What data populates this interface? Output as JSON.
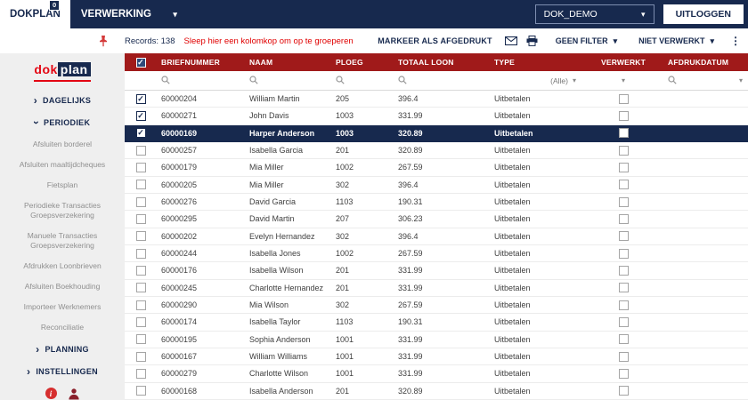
{
  "topbar": {
    "brand": "DOKPLAN",
    "badge": "0",
    "module": "VERWERKING",
    "environment": "DOK_DEMO",
    "logout_label": "UITLOGGEN"
  },
  "toolbar": {
    "records_label": "Records: 138",
    "group_hint": "Sleep hier een kolomkop om op te groeperen",
    "mark_printed_label": "MARKEER ALS AFGEDRUKT",
    "filter_label": "GEEN FILTER",
    "processed_label": "NIET VERWERKT"
  },
  "sidebar": {
    "logo_part1": "dok",
    "logo_part2": "plan",
    "section_dagelijks": "DAGELIJKS",
    "section_periodiek": "PERIODIEK",
    "section_planning": "PLANNING",
    "section_instellingen": "INSTELLINGEN",
    "periodiek_items": [
      "Afsluiten borderel",
      "Afsluiten maaltijdcheques",
      "Fietsplan",
      "Periodieke Transacties Groepsverzekering",
      "Manuele Transacties Groepsverzekering",
      "Afdrukken Loonbrieven",
      "Afsluiten Boekhouding",
      "Importeer Werknemers",
      "Reconciliatie"
    ],
    "info_icon_glyph": "i"
  },
  "grid": {
    "columns": {
      "briefnummer": "BRIEFNUMMER",
      "naam": "NAAM",
      "ploeg": "PLOEG",
      "totaal_loon": "TOTAAL LOON",
      "type": "TYPE",
      "verwerkt": "VERWERKT",
      "afdrukdatum": "AFDRUKDATUM"
    },
    "type_filter_value": "(Alle)",
    "rows": [
      {
        "selected": true,
        "highlighted": false,
        "briefnummer": "60000204",
        "naam": "William Martin",
        "ploeg": "205",
        "totaal_loon": "396.4",
        "type": "Uitbetalen",
        "verwerkt": false,
        "afdrukdatum": ""
      },
      {
        "selected": true,
        "highlighted": false,
        "briefnummer": "60000271",
        "naam": "John Davis",
        "ploeg": "1003",
        "totaal_loon": "331.99",
        "type": "Uitbetalen",
        "verwerkt": false,
        "afdrukdatum": ""
      },
      {
        "selected": true,
        "highlighted": true,
        "briefnummer": "60000169",
        "naam": "Harper Anderson",
        "ploeg": "1003",
        "totaal_loon": "320.89",
        "type": "Uitbetalen",
        "verwerkt": false,
        "afdrukdatum": ""
      },
      {
        "selected": false,
        "highlighted": false,
        "briefnummer": "60000257",
        "naam": "Isabella Garcia",
        "ploeg": "201",
        "totaal_loon": "320.89",
        "type": "Uitbetalen",
        "verwerkt": false,
        "afdrukdatum": ""
      },
      {
        "selected": false,
        "highlighted": false,
        "briefnummer": "60000179",
        "naam": "Mia Miller",
        "ploeg": "1002",
        "totaal_loon": "267.59",
        "type": "Uitbetalen",
        "verwerkt": false,
        "afdrukdatum": ""
      },
      {
        "selected": false,
        "highlighted": false,
        "briefnummer": "60000205",
        "naam": "Mia Miller",
        "ploeg": "302",
        "totaal_loon": "396.4",
        "type": "Uitbetalen",
        "verwerkt": false,
        "afdrukdatum": ""
      },
      {
        "selected": false,
        "highlighted": false,
        "briefnummer": "60000276",
        "naam": "David Garcia",
        "ploeg": "1103",
        "totaal_loon": "190.31",
        "type": "Uitbetalen",
        "verwerkt": false,
        "afdrukdatum": ""
      },
      {
        "selected": false,
        "highlighted": false,
        "briefnummer": "60000295",
        "naam": "David Martin",
        "ploeg": "207",
        "totaal_loon": "306.23",
        "type": "Uitbetalen",
        "verwerkt": false,
        "afdrukdatum": ""
      },
      {
        "selected": false,
        "highlighted": false,
        "briefnummer": "60000202",
        "naam": "Evelyn Hernandez",
        "ploeg": "302",
        "totaal_loon": "396.4",
        "type": "Uitbetalen",
        "verwerkt": false,
        "afdrukdatum": ""
      },
      {
        "selected": false,
        "highlighted": false,
        "briefnummer": "60000244",
        "naam": "Isabella Jones",
        "ploeg": "1002",
        "totaal_loon": "267.59",
        "type": "Uitbetalen",
        "verwerkt": false,
        "afdrukdatum": ""
      },
      {
        "selected": false,
        "highlighted": false,
        "briefnummer": "60000176",
        "naam": "Isabella Wilson",
        "ploeg": "201",
        "totaal_loon": "331.99",
        "type": "Uitbetalen",
        "verwerkt": false,
        "afdrukdatum": ""
      },
      {
        "selected": false,
        "highlighted": false,
        "briefnummer": "60000245",
        "naam": "Charlotte Hernandez",
        "ploeg": "201",
        "totaal_loon": "331.99",
        "type": "Uitbetalen",
        "verwerkt": false,
        "afdrukdatum": ""
      },
      {
        "selected": false,
        "highlighted": false,
        "briefnummer": "60000290",
        "naam": "Mia Wilson",
        "ploeg": "302",
        "totaal_loon": "267.59",
        "type": "Uitbetalen",
        "verwerkt": false,
        "afdrukdatum": ""
      },
      {
        "selected": false,
        "highlighted": false,
        "briefnummer": "60000174",
        "naam": "Isabella Taylor",
        "ploeg": "1103",
        "totaal_loon": "190.31",
        "type": "Uitbetalen",
        "verwerkt": false,
        "afdrukdatum": ""
      },
      {
        "selected": false,
        "highlighted": false,
        "briefnummer": "60000195",
        "naam": "Sophia Anderson",
        "ploeg": "1001",
        "totaal_loon": "331.99",
        "type": "Uitbetalen",
        "verwerkt": false,
        "afdrukdatum": ""
      },
      {
        "selected": false,
        "highlighted": false,
        "briefnummer": "60000167",
        "naam": "William Williams",
        "ploeg": "1001",
        "totaal_loon": "331.99",
        "type": "Uitbetalen",
        "verwerkt": false,
        "afdrukdatum": ""
      },
      {
        "selected": false,
        "highlighted": false,
        "briefnummer": "60000279",
        "naam": "Charlotte Wilson",
        "ploeg": "1001",
        "totaal_loon": "331.99",
        "type": "Uitbetalen",
        "verwerkt": false,
        "afdrukdatum": ""
      },
      {
        "selected": false,
        "highlighted": false,
        "briefnummer": "60000168",
        "naam": "Isabella Anderson",
        "ploeg": "201",
        "totaal_loon": "320.89",
        "type": "Uitbetalen",
        "verwerkt": false,
        "afdrukdatum": ""
      }
    ]
  },
  "icons": {
    "caret_down": "▾",
    "kebab": "⋮",
    "chevron_right": "›"
  },
  "colors": {
    "navy": "#17294e",
    "maroon": "#a01a1a",
    "accent_red": "#e30613",
    "hint_red": "#e00000",
    "sidebar_bg": "#efefef"
  }
}
